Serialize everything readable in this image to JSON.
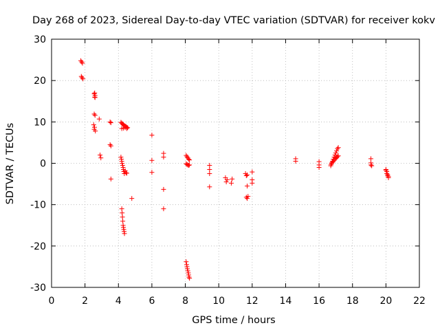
{
  "chart_data": {
    "type": "scatter",
    "title": "Day 268 of 2023, Sidereal Day-to-day VTEC variation (SDTVAR) for receiver kokv",
    "xlabel": "GPS time / hours",
    "ylabel": "SDTVAR / TECUs",
    "xlim": [
      0,
      22
    ],
    "ylim": [
      -30,
      30
    ],
    "xticks": [
      0,
      2,
      4,
      6,
      8,
      10,
      12,
      14,
      16,
      18,
      20,
      22
    ],
    "yticks": [
      -30,
      -20,
      -10,
      0,
      10,
      20,
      30
    ],
    "grid": true,
    "marker": "plus",
    "color": "#ff0000",
    "series": [
      {
        "name": "SDTVAR",
        "x": [
          1.75,
          1.8,
          1.85,
          1.78,
          1.82,
          1.88,
          2.55,
          2.6,
          2.58,
          2.55,
          2.6,
          2.52,
          2.57,
          2.55,
          2.62,
          2.58,
          2.6,
          2.85,
          2.9,
          2.95,
          3.5,
          3.55,
          3.5,
          3.55,
          3.55,
          4.15,
          4.2,
          4.25,
          4.3,
          4.35,
          4.4,
          4.45,
          4.5,
          4.55,
          4.2,
          4.3,
          4.4,
          4.5,
          4.15,
          4.18,
          4.2,
          4.22,
          4.25,
          4.28,
          4.3,
          4.32,
          4.35,
          4.4,
          4.45,
          4.5,
          4.2,
          4.22,
          4.24,
          4.26,
          4.28,
          4.3,
          4.32,
          4.34,
          4.36,
          4.8,
          6.0,
          6.0,
          6.0,
          6.7,
          6.7,
          6.7,
          6.7,
          8.05,
          8.1,
          8.15,
          8.2,
          8.25,
          8.05,
          8.1,
          8.15,
          8.2,
          8.25,
          8.05,
          8.08,
          8.1,
          8.12,
          8.15,
          8.18,
          8.2,
          8.22,
          8.25,
          9.45,
          9.45,
          9.45,
          9.45,
          10.4,
          10.45,
          10.5,
          10.75,
          10.8,
          11.6,
          11.65,
          11.7,
          11.7,
          11.75,
          11.7,
          11.65,
          12.0,
          12.0,
          12.0,
          14.6,
          14.6,
          16.0,
          16.0,
          16.0,
          16.7,
          16.75,
          16.8,
          16.85,
          16.9,
          16.95,
          17.0,
          17.05,
          17.1,
          17.15,
          16.72,
          16.78,
          16.85,
          16.9,
          16.95,
          17.0,
          17.05,
          17.1,
          17.15,
          19.1,
          19.1,
          19.15,
          19.1,
          20.0,
          20.05,
          20.1,
          20.15,
          20.05,
          20.1,
          20.15,
          20.0
        ],
        "y": [
          24.8,
          24.5,
          24.2,
          21.0,
          20.7,
          20.4,
          16.8,
          16.4,
          16.0,
          11.9,
          11.6,
          9.3,
          8.7,
          8.2,
          7.8,
          17.0,
          15.9,
          10.7,
          2.0,
          1.3,
          10.0,
          9.8,
          4.5,
          4.2,
          -3.8,
          9.9,
          9.7,
          9.5,
          9.3,
          9.1,
          9.0,
          8.9,
          8.7,
          8.6,
          8.4,
          8.5,
          8.6,
          8.4,
          1.5,
          1.0,
          0.5,
          0.0,
          -0.5,
          -1.0,
          -1.5,
          -2.0,
          -2.5,
          -1.8,
          -2.3,
          -2.4,
          -11.0,
          -12.0,
          -13.0,
          -14.0,
          -15.0,
          -15.5,
          -16.0,
          -16.5,
          -17.0,
          -8.5,
          6.8,
          0.7,
          -2.2,
          2.4,
          1.5,
          -6.3,
          -11.0,
          1.9,
          1.6,
          1.3,
          1.0,
          0.8,
          -0.1,
          -0.3,
          -0.4,
          -0.5,
          -0.4,
          -23.8,
          -24.5,
          -25.0,
          -25.5,
          -26.0,
          -26.5,
          -27.0,
          -27.5,
          -27.8,
          -0.5,
          -1.5,
          -2.5,
          -5.7,
          -3.5,
          -4.5,
          -4.0,
          -4.8,
          -3.8,
          -2.5,
          -3.0,
          -2.8,
          -5.5,
          -8.0,
          -8.5,
          -8.2,
          -2.1,
          -4.0,
          -4.8,
          1.1,
          0.5,
          0.4,
          -0.4,
          -1.0,
          -0.6,
          0.0,
          0.5,
          1.0,
          1.5,
          2.0,
          2.5,
          3.0,
          3.5,
          3.8,
          -0.3,
          0.2,
          0.4,
          0.7,
          1.0,
          1.2,
          1.4,
          1.6,
          1.8,
          1.1,
          0.1,
          -0.6,
          -0.4,
          -1.7,
          -2.5,
          -3.0,
          -3.5,
          -2.0,
          -2.7,
          -3.2,
          -1.5
        ]
      }
    ]
  }
}
